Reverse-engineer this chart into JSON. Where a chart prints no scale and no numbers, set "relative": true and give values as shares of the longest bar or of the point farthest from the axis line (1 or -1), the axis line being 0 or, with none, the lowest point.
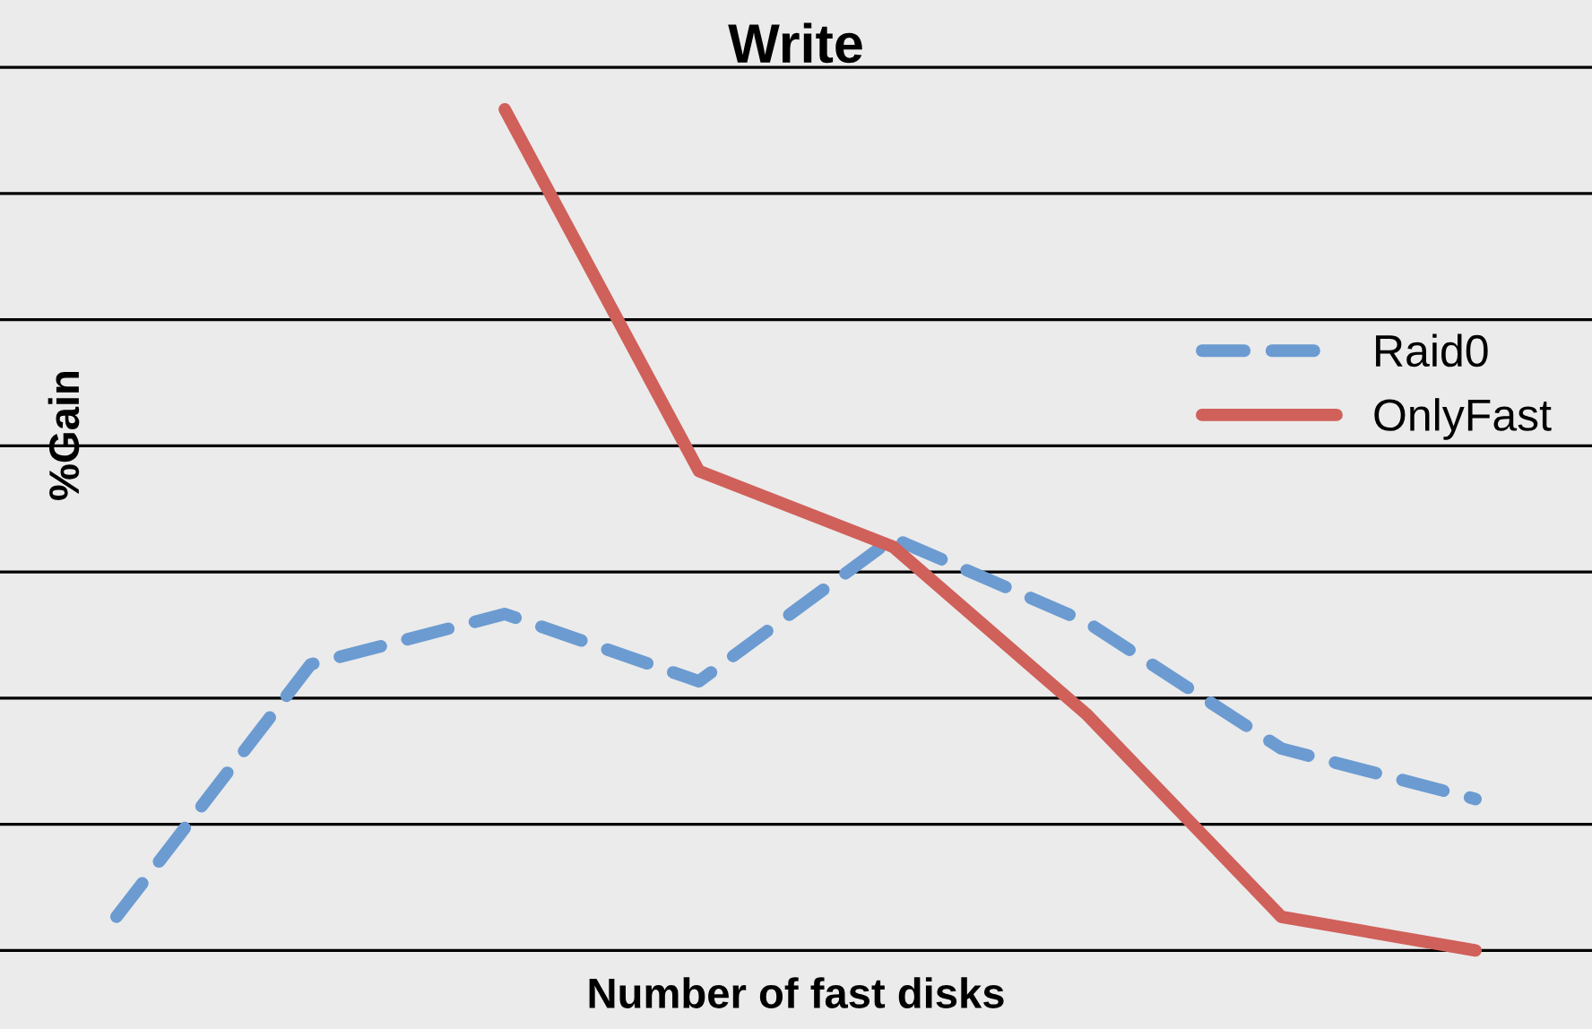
{
  "chart_data": {
    "type": "line",
    "title": "Write",
    "xlabel": "Number of fast disks",
    "ylabel": "%Gain",
    "relative": true,
    "categories": [
      null,
      null,
      null,
      null,
      null,
      null,
      null,
      null
    ],
    "series": [
      {
        "name": "Raid0",
        "color": "#6b9bd1",
        "line_style": "dashed",
        "values": [
          0.04,
          0.34,
          0.4,
          0.32,
          0.49,
          0.39,
          0.24,
          0.18
        ]
      },
      {
        "name": "OnlyFast",
        "color": "#d0605a",
        "line_style": "solid",
        "values": [
          null,
          null,
          1.0,
          0.57,
          0.48,
          0.28,
          0.04,
          0.0
        ]
      }
    ],
    "grid": "y",
    "legend": "right",
    "tick_labels": false
  }
}
